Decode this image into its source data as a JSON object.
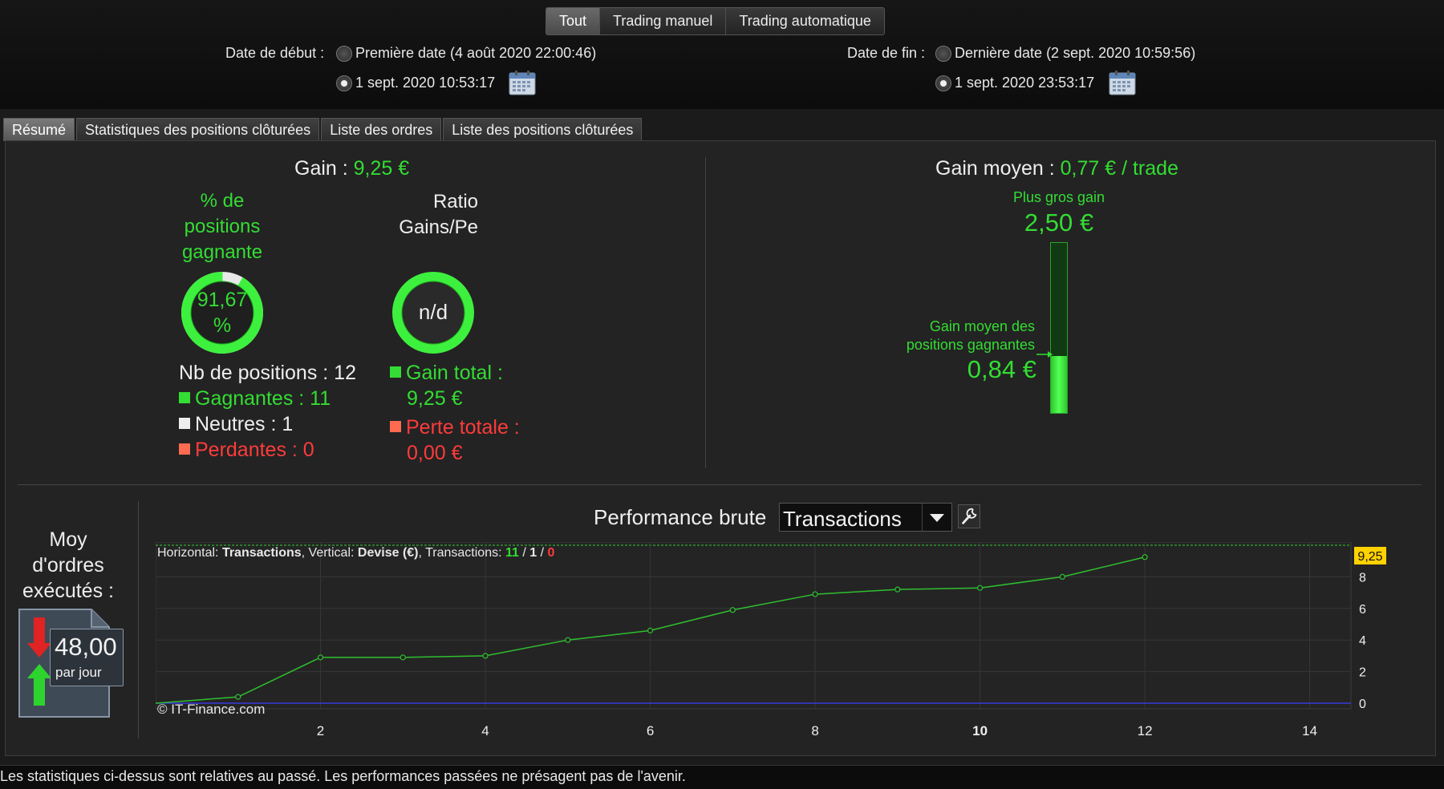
{
  "filters": {
    "buttons": [
      "Tout",
      "Trading manuel",
      "Trading automatique"
    ],
    "active_index": 0
  },
  "dates": {
    "start_label": "Date de début :",
    "start_first": "Première date (4 août 2020 22:00:46)",
    "start_custom": "1 sept. 2020 10:53:17",
    "end_label": "Date de fin :",
    "end_last": "Dernière date (2 sept. 2020 10:59:56)",
    "end_custom": "1 sept. 2020 23:53:17"
  },
  "tabs": [
    "Résumé",
    "Statistiques des positions clôturées",
    "Liste des ordres",
    "Liste des positions clôturées"
  ],
  "summary": {
    "gain_label": "Gain :",
    "gain_value": "9,25 €",
    "pct_title_1": "% de",
    "pct_title_2": "positions",
    "pct_title_3": "gagnante",
    "pct_value_1": "91,67",
    "pct_value_2": "%",
    "pct_fraction": 0.9167,
    "ratio_title_1": "Ratio",
    "ratio_title_2": "Gains/Pe",
    "ratio_value": "n/d",
    "nb_positions": "Nb de positions : 12",
    "winners": "Gagnantes : 11",
    "neutral": "Neutres : 1",
    "losers": "Perdantes : 0",
    "gain_total_label": "Gain total :",
    "gain_total_value": "9,25 €",
    "loss_total_label": "Perte totale :",
    "loss_total_value": "0,00 €",
    "avg_gain_label": "Gain moyen :",
    "avg_gain_value": "0,77 € / trade",
    "biggest_gain_label": "Plus gros gain",
    "biggest_gain_value": "2,50 €",
    "avg_win_label_1": "Gain moyen des",
    "avg_win_label_2": "positions gagnantes",
    "avg_win_value": "0,84 €",
    "avg_win_fraction": 0.336
  },
  "orders": {
    "title_1": "Moy",
    "title_2": "d'ordres",
    "title_3": "exécutés :",
    "value": "48,00",
    "unit": "par jour"
  },
  "performance": {
    "title": "Performance brute",
    "selector": "Transactions",
    "info_horizontal": "Horizontal:",
    "info_horizontal_value": "Transactions",
    "info_vertical": ", Vertical:",
    "info_vertical_value": "Devise (€)",
    "info_transactions": ", Transactions:",
    "info_win": "11",
    "info_sep1": " / ",
    "info_neutral": "1",
    "info_sep2": " / ",
    "info_loss": "0",
    "watermark": "© IT-Finance.com",
    "last_value_tag": "9,25"
  },
  "chart_data": {
    "type": "line",
    "x": [
      0,
      1,
      2,
      3,
      4,
      5,
      6,
      7,
      8,
      9,
      10,
      11,
      12
    ],
    "series": [
      {
        "values": [
          0,
          0.4,
          2.9,
          2.9,
          3.0,
          4.0,
          4.6,
          5.9,
          6.9,
          7.2,
          7.3,
          8.0,
          9.25
        ]
      }
    ],
    "xlim": [
      0,
      14.5
    ],
    "ylim": [
      0,
      10
    ],
    "x_ticks": [
      "2",
      "4",
      "6",
      "8",
      "10",
      "12",
      "14"
    ],
    "y_ticks": [
      "0",
      "2",
      "4",
      "6",
      "8"
    ],
    "grid": true,
    "colors": {
      "line": "#2fbf2f",
      "zero_line": "#3a3adf",
      "ref_line": "#33cc33"
    }
  },
  "footer": {
    "disclaimer": "Les statistiques ci-dessus sont relatives au passé. Les performances passées ne présagent pas de l'avenir."
  },
  "colors": {
    "green": "#33dd33",
    "red": "#ff3b3b",
    "tag": "#ffd200"
  }
}
